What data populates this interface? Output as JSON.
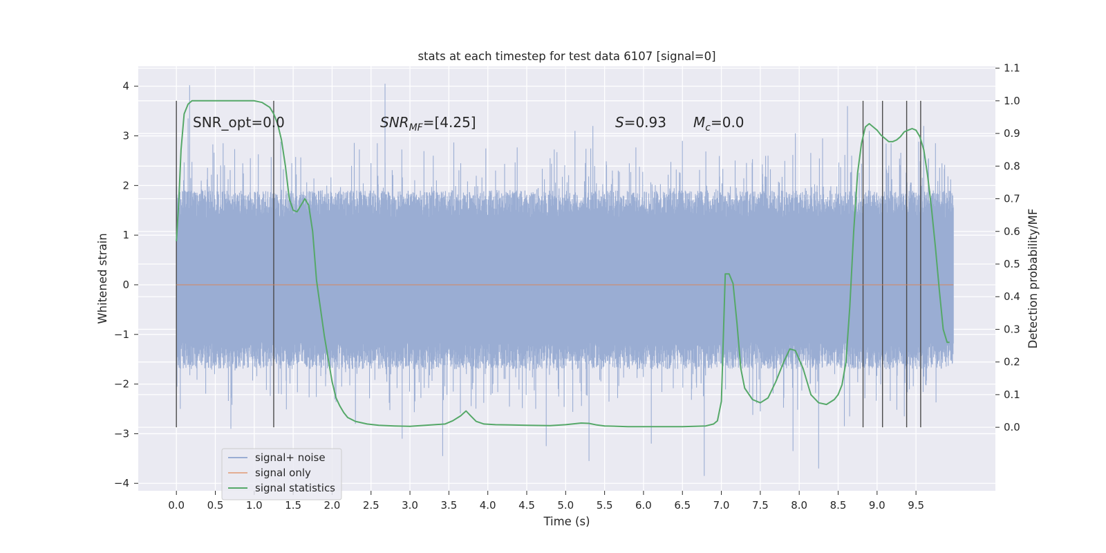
{
  "chart_data": {
    "type": "line",
    "title": "stats at each timestep for test data 6107 [signal=0]",
    "xlabel": "Time (s)",
    "ylabel_left": "Whitened strain",
    "ylabel_right": "Detection probability/MF",
    "xlim": [
      -0.49,
      10.52
    ],
    "ylim_left": [
      -4.15,
      4.4
    ],
    "ylim_right": [
      -0.1945,
      1.1055
    ],
    "x_ticks": [
      "0.0",
      "0.5",
      "1.0",
      "1.5",
      "2.0",
      "2.5",
      "3.0",
      "3.5",
      "4.0",
      "4.5",
      "5.0",
      "5.5",
      "6.0",
      "6.5",
      "7.0",
      "7.5",
      "8.0",
      "8.5",
      "9.0",
      "9.5"
    ],
    "y_ticks_left": [
      "4",
      "3",
      "2",
      "1",
      "0",
      "−1",
      "−2",
      "−3",
      "−4"
    ],
    "y_ticks_right": [
      "1.1",
      "1.0",
      "0.9",
      "0.8",
      "0.7",
      "0.6",
      "0.5",
      "0.4",
      "0.3",
      "0.2",
      "0.1",
      "0.0"
    ],
    "grid": true,
    "legend_position": "lower-left",
    "annotations": {
      "snr_opt": "SNR_opt=0.0",
      "snr_mf_main": "SNR",
      "snr_mf_sub": "MF",
      "snr_mf_value": "=[4.25]",
      "s_label": "S",
      "s_value": "=0.93",
      "mc_main": "M",
      "mc_sub": "c",
      "mc_value": "=0.0"
    },
    "vertical_markers": [
      0.0,
      1.25,
      8.82,
      9.07,
      9.38,
      9.56
    ],
    "series": [
      {
        "name": "signal+ noise",
        "color": "#9aadd3",
        "style": "dense-noise",
        "x_range": [
          0.0,
          9.98
        ],
        "core_band": [
          -1.15,
          1.35
        ],
        "positive_peaks": [
          [
            0.15,
            3.35
          ],
          [
            0.17,
            4.02
          ],
          [
            0.6,
            2.85
          ],
          [
            0.95,
            2.55
          ],
          [
            2.5,
            2.45
          ],
          [
            2.68,
            4.05
          ],
          [
            3.3,
            2.6
          ],
          [
            4.1,
            2.3
          ],
          [
            4.8,
            2.55
          ],
          [
            5.12,
            3.1
          ],
          [
            5.35,
            3.2
          ],
          [
            5.6,
            2.3
          ],
          [
            6.5,
            2.9
          ],
          [
            7.6,
            2.6
          ],
          [
            7.95,
            3.05
          ],
          [
            8.3,
            2.95
          ],
          [
            8.62,
            3.6
          ],
          [
            8.9,
            3.1
          ],
          [
            9.18,
            2.85
          ],
          [
            9.6,
            3.2
          ],
          [
            9.75,
            2.85
          ]
        ],
        "negative_peaks": [
          [
            0.05,
            -2.5
          ],
          [
            0.7,
            -2.9
          ],
          [
            2.3,
            -2.8
          ],
          [
            2.9,
            -3.1
          ],
          [
            3.42,
            -3.45
          ],
          [
            4.75,
            -3.25
          ],
          [
            5.3,
            -3.55
          ],
          [
            6.1,
            -3.2
          ],
          [
            6.78,
            -3.85
          ],
          [
            7.5,
            -2.55
          ],
          [
            7.92,
            -3.35
          ],
          [
            8.25,
            -3.7
          ],
          [
            8.58,
            -2.85
          ],
          [
            9.35,
            -2.65
          ]
        ]
      },
      {
        "name": "signal only",
        "color": "#dd8452",
        "x": [
          0.0,
          9.98
        ],
        "y": [
          0.0,
          0.0
        ]
      },
      {
        "name": "signal statistics",
        "color": "#55a868",
        "x": [
          0.0,
          0.03,
          0.06,
          0.1,
          0.15,
          0.2,
          0.3,
          0.5,
          0.8,
          1.0,
          1.1,
          1.2,
          1.25,
          1.3,
          1.35,
          1.4,
          1.45,
          1.5,
          1.55,
          1.6,
          1.65,
          1.7,
          1.75,
          1.8,
          1.9,
          2.0,
          2.05,
          2.1,
          2.15,
          2.2,
          2.3,
          2.45,
          2.6,
          2.8,
          3.0,
          3.2,
          3.45,
          3.55,
          3.65,
          3.72,
          3.78,
          3.85,
          3.95,
          4.1,
          4.3,
          4.5,
          4.8,
          5.0,
          5.2,
          5.3,
          5.4,
          5.5,
          5.8,
          6.0,
          6.5,
          6.8,
          6.9,
          6.95,
          7.0,
          7.05,
          7.1,
          7.15,
          7.2,
          7.25,
          7.3,
          7.4,
          7.5,
          7.6,
          7.7,
          7.8,
          7.88,
          7.95,
          8.05,
          8.15,
          8.25,
          8.35,
          8.45,
          8.5,
          8.55,
          8.6,
          8.65,
          8.7,
          8.75,
          8.8,
          8.85,
          8.9,
          8.95,
          9.0,
          9.05,
          9.1,
          9.15,
          9.2,
          9.25,
          9.3,
          9.35,
          9.4,
          9.45,
          9.5,
          9.55,
          9.6,
          9.65,
          9.7,
          9.75,
          9.8,
          9.85,
          9.9,
          9.93
        ],
        "y": [
          0.57,
          0.69,
          0.85,
          0.96,
          0.99,
          1.0,
          1.0,
          1.0,
          1.0,
          1.0,
          0.995,
          0.98,
          0.96,
          0.93,
          0.88,
          0.8,
          0.7,
          0.665,
          0.66,
          0.68,
          0.7,
          0.68,
          0.6,
          0.45,
          0.28,
          0.14,
          0.09,
          0.065,
          0.045,
          0.03,
          0.018,
          0.01,
          0.006,
          0.004,
          0.003,
          0.006,
          0.01,
          0.02,
          0.035,
          0.05,
          0.035,
          0.018,
          0.01,
          0.008,
          0.007,
          0.006,
          0.005,
          0.008,
          0.013,
          0.012,
          0.007,
          0.004,
          0.002,
          0.002,
          0.002,
          0.004,
          0.01,
          0.02,
          0.08,
          0.47,
          0.47,
          0.44,
          0.32,
          0.18,
          0.12,
          0.085,
          0.075,
          0.09,
          0.14,
          0.2,
          0.24,
          0.235,
          0.18,
          0.1,
          0.075,
          0.07,
          0.085,
          0.1,
          0.13,
          0.2,
          0.37,
          0.6,
          0.78,
          0.87,
          0.92,
          0.93,
          0.92,
          0.91,
          0.895,
          0.885,
          0.875,
          0.875,
          0.88,
          0.89,
          0.905,
          0.91,
          0.915,
          0.91,
          0.89,
          0.85,
          0.77,
          0.67,
          0.55,
          0.42,
          0.3,
          0.26,
          0.26
        ]
      }
    ]
  },
  "legend": {
    "items": [
      {
        "label": "signal+ noise",
        "color": "#9aadd3"
      },
      {
        "label": "signal only",
        "color": "#dd8452"
      },
      {
        "label": "signal statistics",
        "color": "#55a868"
      }
    ]
  }
}
